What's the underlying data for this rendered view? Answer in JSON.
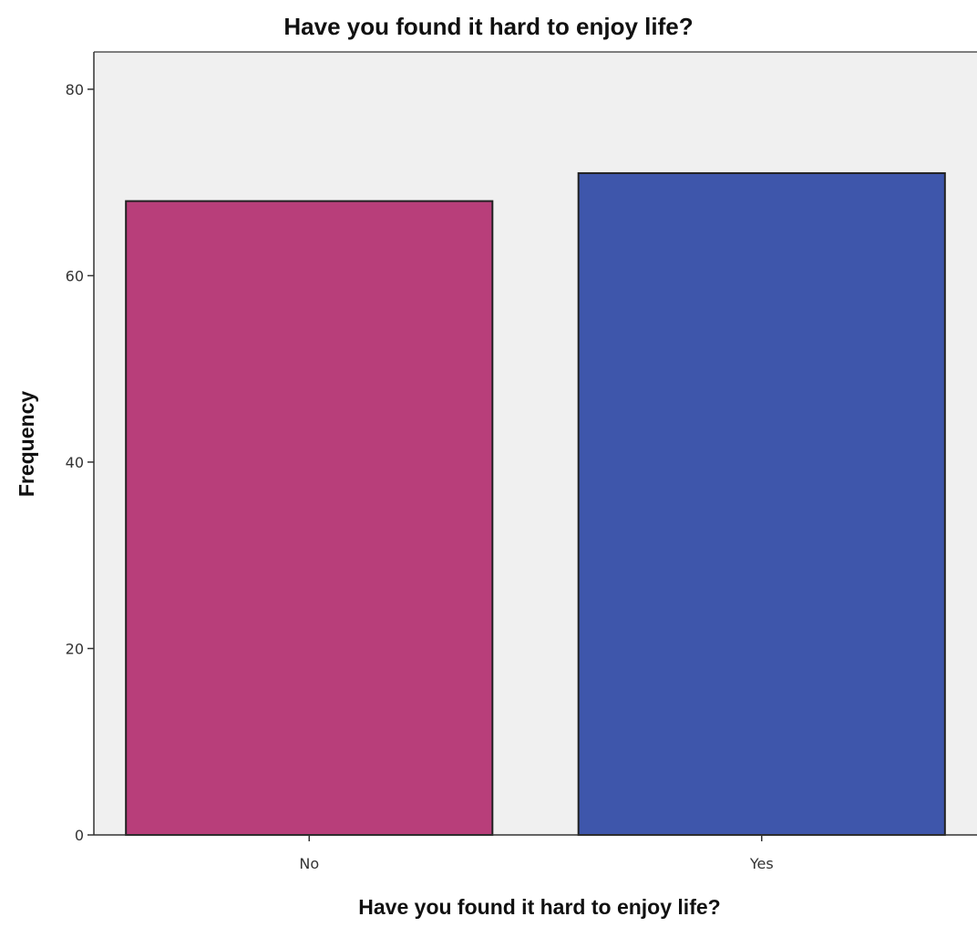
{
  "chart_data": {
    "type": "bar",
    "title": "Have you found it hard to enjoy life?",
    "xlabel": "Have you found it hard to enjoy life?",
    "ylabel": "Frequency",
    "categories": [
      "No",
      "Yes"
    ],
    "values": [
      68,
      71
    ],
    "colors": [
      "#b83e7a",
      "#3e56ab"
    ],
    "ylim": [
      0,
      84
    ],
    "yticks": [
      0,
      20,
      40,
      60,
      80
    ],
    "plot_background": "#f0f0f0",
    "grid": false,
    "legend": "none"
  }
}
